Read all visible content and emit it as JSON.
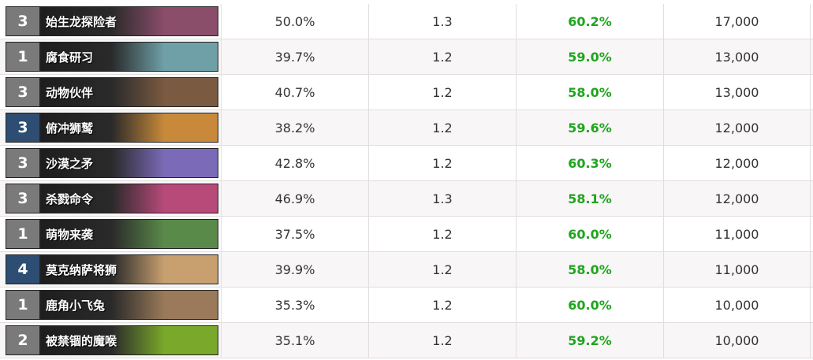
{
  "table": {
    "rows": [
      [
        "3",
        "始生龙探险者",
        "50.0%",
        "1.3",
        "60.2%",
        "17,000"
      ],
      [
        "1",
        "腐食研习",
        "39.7%",
        "1.2",
        "59.0%",
        "13,000"
      ],
      [
        "3",
        "动物伙伴",
        "40.7%",
        "1.2",
        "58.0%",
        "13,000"
      ],
      [
        "3",
        "俯冲狮鹫",
        "38.2%",
        "1.2",
        "59.6%",
        "12,000"
      ],
      [
        "3",
        "沙漠之矛",
        "42.8%",
        "1.2",
        "60.3%",
        "12,000"
      ],
      [
        "3",
        "杀戮命令",
        "46.9%",
        "1.3",
        "58.1%",
        "12,000"
      ],
      [
        "1",
        "萌物来袭",
        "37.5%",
        "1.2",
        "60.0%",
        "11,000"
      ],
      [
        "4",
        "莫克纳萨将狮",
        "39.9%",
        "1.2",
        "58.0%",
        "11,000"
      ],
      [
        "1",
        "鹿角小飞兔",
        "35.3%",
        "1.2",
        "60.0%",
        "10,000"
      ],
      [
        "2",
        "被禁锢的魔喉",
        "35.1%",
        "1.2",
        "59.2%",
        "10,000"
      ]
    ]
  }
}
